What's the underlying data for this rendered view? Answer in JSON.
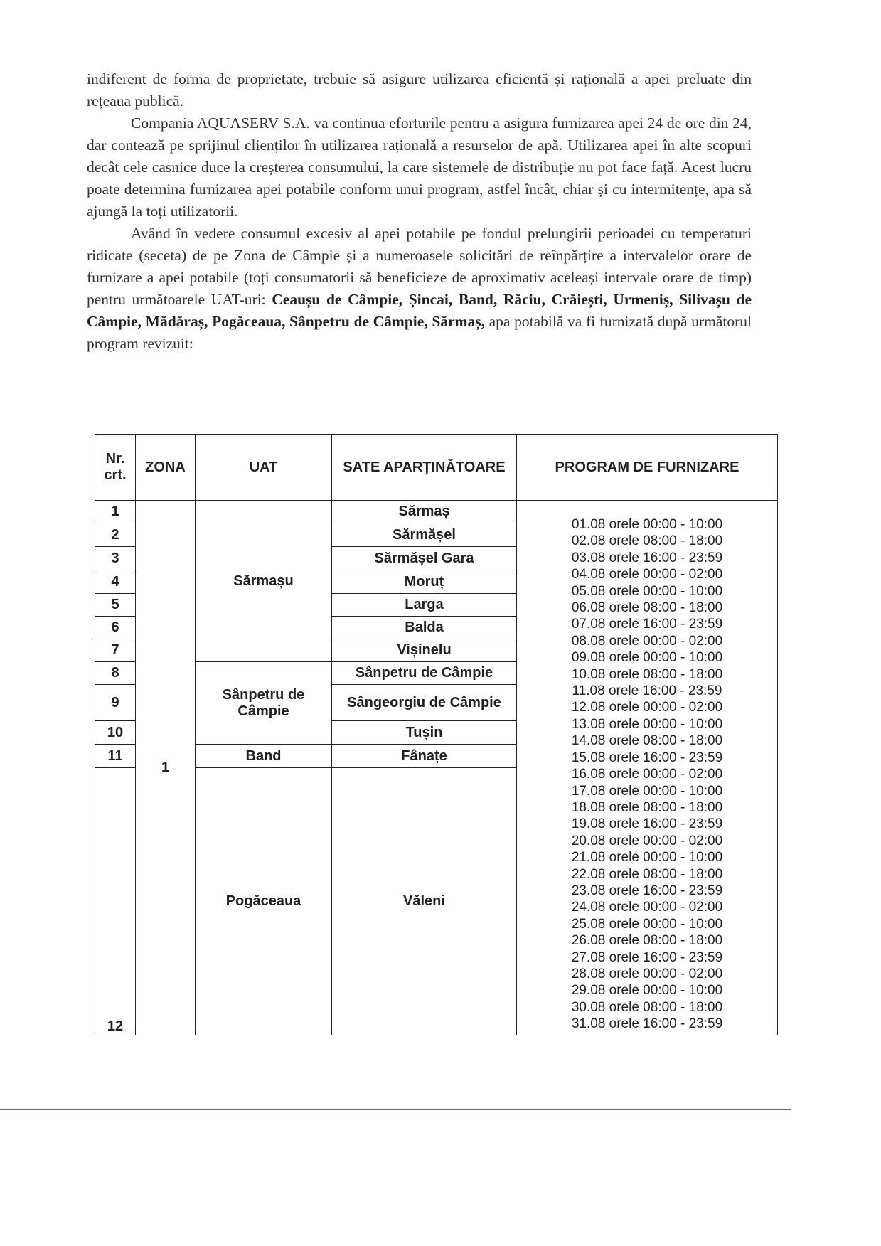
{
  "paragraphs": [
    {
      "text": "indiferent de forma de proprietate, trebuie să asigure utilizarea eficientă și rațională a apei preluate din rețeaua publică."
    },
    {
      "text": "Compania AQUASERV S.A. va continua eforturile pentru a asigura furnizarea apei 24 de ore din 24, dar contează pe sprijinul clienților în utilizarea rațională a resurselor de apă. Utilizarea apei în alte scopuri decât cele casnice duce la creșterea consumului, la care sistemele de distribuție nu pot face față. Acest lucru poate determina furnizarea apei potabile conform unui program, astfel încât, chiar și cu intermitențe, apa să ajungă la toți utilizatorii."
    },
    {
      "pre": "Având în vedere consumul excesiv al apei potabile pe fondul prelungirii perioadei cu temperaturi ridicate (seceta) de pe Zona de Câmpie și a numeroasele solicitări de reînpărțire a intervalelor orare de furnizare a apei potabile (toți consumatorii să beneficieze de aproximativ aceleași intervale orare de timp) pentru următoarele UAT-uri: ",
      "bold": "Ceaușu de Câmpie, Șincai, Band, Răciu, Crăiești, Urmeniș, Silivașu de Câmpie, Mădăraș, Pogăceaua, Sânpetru de Câmpie, Sărmaș,",
      "post": " apa potabilă va fi furnizată după următorul program revizuit:"
    }
  ],
  "table": {
    "headers": {
      "nr": "Nr. crt.",
      "zona": "ZONA",
      "uat": "UAT",
      "sate": "SATE APARȚINĂTOARE",
      "program": "PROGRAM DE FURNIZARE"
    },
    "zona": "1",
    "nr": [
      "1",
      "2",
      "3",
      "4",
      "5",
      "6",
      "7",
      "8",
      "9",
      "10",
      "11",
      "12"
    ],
    "uat": [
      "Sărmașu",
      "Sânpetru de Câmpie",
      "Band",
      "Pogăceaua"
    ],
    "sate": [
      "Sărmaș",
      "Sărmășel",
      "Sărmășel Gara",
      "Moruț",
      "Larga",
      "Balda",
      "Vișinelu",
      "Sânpetru de Câmpie",
      "Sângeorgiu de Câmpie",
      "Tușin",
      "Fânațe",
      "Văleni"
    ],
    "program": [
      "01.08 orele 00:00 - 10:00",
      "02.08 orele 08:00 - 18:00",
      "03.08 orele 16:00 - 23:59",
      "04.08 orele 00:00 - 02:00",
      "05.08 orele 00:00 - 10:00",
      "06.08 orele 08:00 - 18:00",
      "07.08 orele 16:00 - 23:59",
      "08.08 orele 00:00 - 02:00",
      "09.08 orele 00:00 - 10:00",
      "10.08 orele 08:00 - 18:00",
      "11.08 orele 16:00 - 23:59",
      "12.08 orele 00:00 - 02:00",
      "13.08 orele 00:00 - 10:00",
      "14.08 orele 08:00 - 18:00",
      "15.08 orele 16:00 - 23:59",
      "16.08 orele 00:00 - 02:00",
      "17.08 orele 00:00 - 10:00",
      "18.08 orele 08:00 - 18:00",
      "19.08 orele 16:00 - 23:59",
      "20.08 orele 00:00 - 02:00",
      "21.08 orele 00:00 - 10:00",
      "22.08 orele 08:00 - 18:00",
      "23.08 orele 16:00 - 23:59",
      "24.08 orele 00:00 - 02:00",
      "25.08 orele 00:00 - 10:00",
      "26.08 orele 08:00 - 18:00",
      "27.08 orele 16:00 - 23:59",
      "28.08 orele 00:00 - 02:00",
      "29.08 orele 00:00 - 10:00",
      "30.08 orele 08:00 - 18:00",
      "31.08 orele 16:00 - 23:59"
    ]
  }
}
